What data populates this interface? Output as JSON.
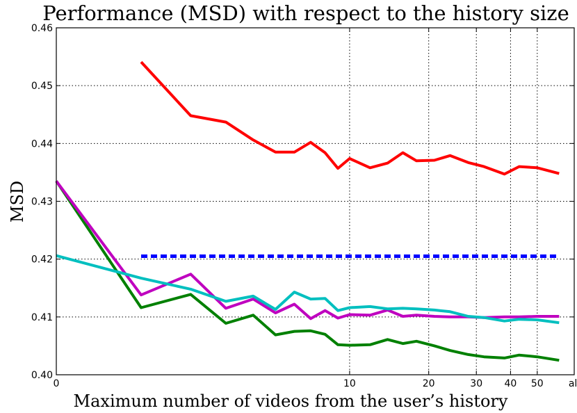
{
  "chart_data": {
    "type": "line",
    "title": "Performance (MSD) with respect to the history size",
    "xlabel": "Maximum number of videos from the user’s history",
    "ylabel": "MSD",
    "ylim": [
      0.4,
      0.46
    ],
    "grid": true,
    "x_scale": "log1p",
    "x_ticks": [
      {
        "value": 0,
        "label": "0"
      },
      {
        "value": 10,
        "label": "10"
      },
      {
        "value": 20,
        "label": "20"
      },
      {
        "value": 30,
        "label": "30"
      },
      {
        "value": 40,
        "label": "40"
      },
      {
        "value": 50,
        "label": "50"
      },
      {
        "value": 68,
        "label": "all"
      }
    ],
    "y_ticks": [
      {
        "value": 0.4,
        "label": "0.40"
      },
      {
        "value": 0.41,
        "label": "0.41"
      },
      {
        "value": 0.42,
        "label": "0.42"
      },
      {
        "value": 0.43,
        "label": "0.43"
      },
      {
        "value": 0.44,
        "label": "0.44"
      },
      {
        "value": 0.45,
        "label": "0.45"
      },
      {
        "value": 0.46,
        "label": "0.46"
      }
    ],
    "series": [
      {
        "color": "#ff0000",
        "x": [
          1,
          2,
          3,
          4,
          5,
          6,
          7,
          8,
          9,
          10,
          12,
          14,
          16,
          18,
          21,
          24,
          28,
          32,
          38,
          43,
          50,
          60
        ],
        "y": [
          0.4541,
          0.4448,
          0.4437,
          0.4406,
          0.4385,
          0.4385,
          0.4402,
          0.4384,
          0.4357,
          0.4374,
          0.4358,
          0.4366,
          0.4384,
          0.437,
          0.4371,
          0.4379,
          0.4367,
          0.436,
          0.4347,
          0.436,
          0.4358,
          0.4348
        ]
      },
      {
        "color": "#008000",
        "x": [
          0,
          1,
          2,
          3,
          4,
          5,
          6,
          7,
          8,
          9,
          10,
          12,
          14,
          16,
          18,
          21,
          24,
          28,
          32,
          38,
          43,
          50,
          60
        ],
        "y": [
          0.4335,
          0.4116,
          0.4139,
          0.4089,
          0.4103,
          0.4069,
          0.4075,
          0.4076,
          0.407,
          0.4052,
          0.4051,
          0.4052,
          0.4061,
          0.4054,
          0.4058,
          0.405,
          0.4042,
          0.4035,
          0.4031,
          0.4029,
          0.4034,
          0.4031,
          0.4025
        ]
      },
      {
        "color": "#bf00bf",
        "x": [
          0,
          1,
          2,
          3,
          4,
          5,
          6,
          7,
          8,
          9,
          10,
          12,
          14,
          16,
          18,
          21,
          24,
          28,
          32,
          38,
          43,
          50,
          60
        ],
        "y": [
          0.4335,
          0.4138,
          0.4174,
          0.4115,
          0.4131,
          0.4107,
          0.4122,
          0.4097,
          0.4111,
          0.4098,
          0.4104,
          0.4103,
          0.4112,
          0.4101,
          0.4103,
          0.4101,
          0.41,
          0.41,
          0.4099,
          0.41,
          0.41,
          0.4101,
          0.4101
        ]
      },
      {
        "color": "#00bfbf",
        "x": [
          0,
          1,
          2,
          3,
          4,
          5,
          6,
          7,
          8,
          9,
          10,
          12,
          14,
          16,
          18,
          21,
          24,
          28,
          32,
          38,
          43,
          50,
          60
        ],
        "y": [
          0.4206,
          0.4167,
          0.4148,
          0.4127,
          0.4136,
          0.4113,
          0.4143,
          0.4131,
          0.4132,
          0.4111,
          0.4116,
          0.4118,
          0.4114,
          0.4115,
          0.4114,
          0.4112,
          0.4109,
          0.4101,
          0.4099,
          0.4093,
          0.4096,
          0.4095,
          0.409
        ]
      },
      {
        "color": "#0000ff",
        "dashed": true,
        "x": [
          1,
          60
        ],
        "y": [
          0.4205,
          0.4205
        ]
      }
    ]
  }
}
